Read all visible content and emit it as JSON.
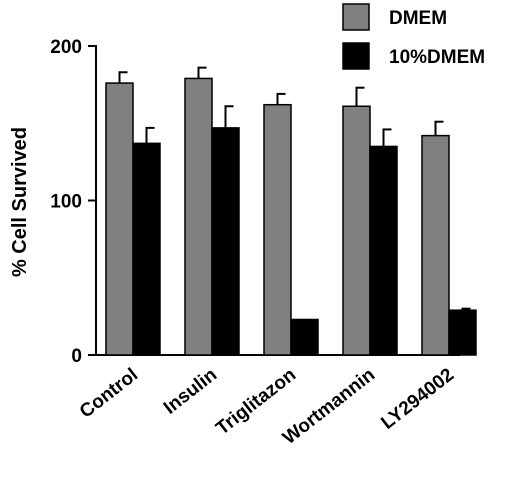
{
  "chart_data": {
    "type": "bar",
    "categories": [
      "Control",
      "Insulin",
      "Triglitazon",
      "Wortmannin",
      "LY294002"
    ],
    "series": [
      {
        "name": "DMEM",
        "values": [
          176,
          179,
          162,
          161,
          142
        ],
        "errors": [
          7,
          7,
          7,
          12,
          9
        ],
        "color": "#808080"
      },
      {
        "name": "10%DMEM",
        "values": [
          137,
          147,
          23,
          135,
          29
        ],
        "errors": [
          10,
          14,
          0,
          11,
          1
        ],
        "color": "#000000"
      }
    ],
    "title": "",
    "xlabel": "",
    "ylabel": "% Cell Survived",
    "ylim": [
      0,
      200
    ],
    "yticks": [
      0,
      100,
      200
    ],
    "legend": "top-right",
    "grid": false
  }
}
